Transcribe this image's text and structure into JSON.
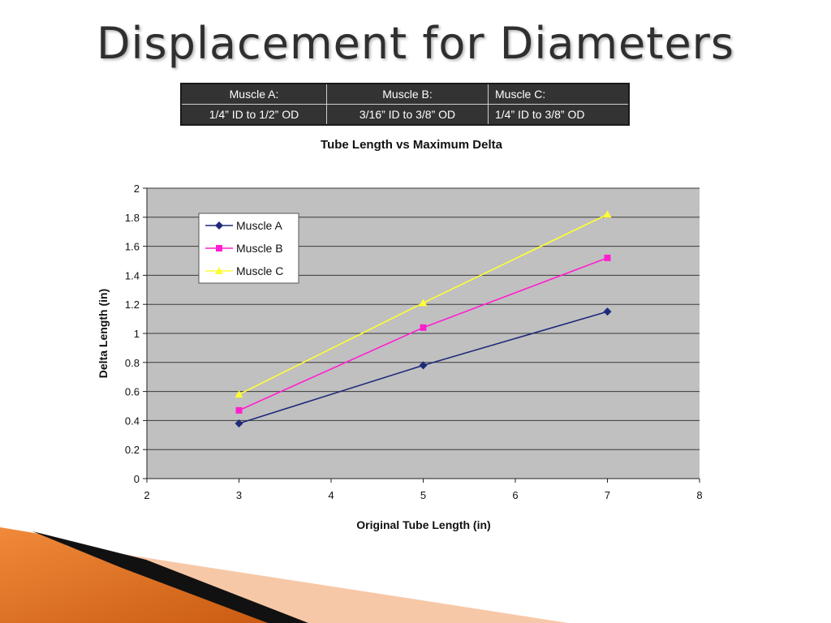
{
  "slide": {
    "title": "Displacement for Diameters"
  },
  "table": {
    "headers": [
      "Muscle A:",
      "Muscle B:",
      "Muscle C:"
    ],
    "specs": [
      "1/4” ID to 1/2” OD",
      "3/16” ID to 3/8” OD",
      "1/4” ID to 3/8” OD"
    ]
  },
  "chart_data": {
    "type": "line",
    "title": "Tube Length vs Maximum Delta",
    "xlabel": "Original Tube Length (in)",
    "ylabel": "Delta Length (in)",
    "xlim": [
      2,
      8
    ],
    "ylim": [
      0,
      2
    ],
    "xticks": [
      "2",
      "3",
      "4",
      "5",
      "6",
      "7",
      "8"
    ],
    "yticks": [
      "0",
      "0.2",
      "0.4",
      "0.6",
      "0.8",
      "1",
      "1.2",
      "1.4",
      "1.6",
      "1.8",
      "2"
    ],
    "x": [
      3,
      5,
      7
    ],
    "series": [
      {
        "name": "Muscle A",
        "values": [
          0.38,
          0.78,
          1.15
        ],
        "color": "#1f2a7a",
        "marker": "diamond"
      },
      {
        "name": "Muscle B",
        "values": [
          0.47,
          1.04,
          1.52
        ],
        "color": "#ff1fd0",
        "marker": "square"
      },
      {
        "name": "Muscle C",
        "values": [
          0.58,
          1.21,
          1.82
        ],
        "color": "#ffff33",
        "marker": "triangle"
      }
    ],
    "plot_background": "#c0c0c0",
    "grid": true,
    "legend": "top-left"
  }
}
